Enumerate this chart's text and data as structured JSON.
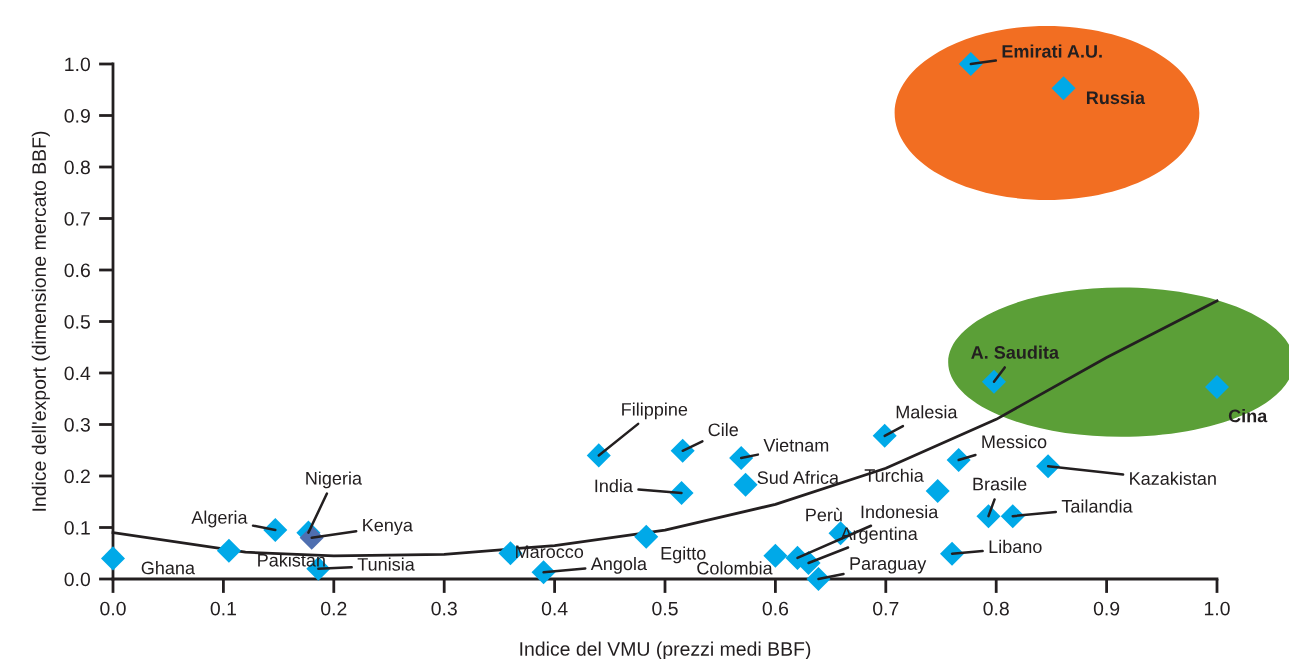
{
  "chart_data": {
    "type": "scatter",
    "xlabel": "Indice del VMU (prezzi medi BBF)",
    "ylabel": "Indice dell'export (dimensione mercato BBF)",
    "xlim": [
      0,
      1.0
    ],
    "ylim": [
      0,
      1.0
    ],
    "xticks": [
      {
        "value": 0,
        "label": "0.0"
      },
      0.1,
      0.2,
      0.3,
      0.4,
      0.5,
      0.6,
      0.7,
      0.8,
      0.9,
      {
        "value": 1.0,
        "label": "1.0"
      }
    ],
    "yticks": [
      {
        "value": 0,
        "label": "0.0"
      },
      0.1,
      0.2,
      0.3,
      0.4,
      0.5,
      0.6,
      0.7,
      0.8,
      0.9,
      {
        "value": 1.0,
        "label": "1.0"
      }
    ],
    "grid": false,
    "legend": false,
    "marker": "diamond",
    "series": [
      {
        "colors": [
          "#00a9e8",
          "#00a9e8",
          "#00a9e8",
          "#00a9e8",
          "#4f6fb0",
          "#00a9e8",
          "#00a9e8",
          "#00a9e8",
          "#00a9e8",
          "#00a9e8",
          "#00a9e8",
          "#00a9e8",
          "#00a9e8",
          "#00a9e8",
          "#00a9e8",
          "#00a9e8",
          "#00a9e8",
          "#00a9e8",
          "#00a9e8",
          "#00a9e8",
          "#00a9e8",
          "#00a9e8",
          "#00a9e8",
          "#00a9e8",
          "#00a9e8",
          "#00a9e8",
          "#00a9e8",
          "#00a9e8",
          "#00a9e8",
          "#00a9e8"
        ],
        "x": [
          0.0,
          0.105,
          0.147,
          0.177,
          0.18,
          0.186,
          0.36,
          0.39,
          0.44,
          0.483,
          0.516,
          0.515,
          0.569,
          0.573,
          0.699,
          0.6,
          0.62,
          0.63,
          0.659,
          0.639,
          0.747,
          0.766,
          0.793,
          0.815,
          0.847,
          0.76,
          0.777,
          0.861,
          0.798,
          1.0
        ],
        "values": [
          0.04,
          0.055,
          0.095,
          0.09,
          0.08,
          0.02,
          0.05,
          0.013,
          0.24,
          0.082,
          0.249,
          0.167,
          0.235,
          0.183,
          0.278,
          0.045,
          0.041,
          0.031,
          0.089,
          0.0,
          0.171,
          0.231,
          0.122,
          0.122,
          0.219,
          0.049,
          1.0,
          0.953,
          0.383,
          0.373
        ]
      },
      {
        "type": "line",
        "color": "#231f20",
        "marker": "none",
        "line_style": "solid",
        "x": [
          0,
          0.12,
          0.2,
          0.3,
          0.4,
          0.5,
          0.6,
          0.7,
          0.8,
          0.9,
          1.0
        ],
        "values": [
          0.09,
          0.052,
          0.045,
          0.048,
          0.065,
          0.095,
          0.145,
          0.215,
          0.31,
          0.43,
          0.54
        ]
      }
    ],
    "annotations": [
      {
        "text": "Ghana",
        "x": 0.0,
        "y": 0.04
      },
      {
        "text": "Pakistan",
        "x": 0.105,
        "y": 0.055
      },
      {
        "text": "Algeria",
        "x": 0.147,
        "y": 0.095
      },
      {
        "text": "Nigeria",
        "x": 0.177,
        "y": 0.09
      },
      {
        "text": "Kenya",
        "x": 0.18,
        "y": 0.08
      },
      {
        "text": "Tunisia",
        "x": 0.186,
        "y": 0.02
      },
      {
        "text": "Marocco",
        "x": 0.36,
        "y": 0.05
      },
      {
        "text": "Angola",
        "x": 0.39,
        "y": 0.013
      },
      {
        "text": "Filippine",
        "x": 0.44,
        "y": 0.24
      },
      {
        "text": "Egitto",
        "x": 0.483,
        "y": 0.082
      },
      {
        "text": "Cile",
        "x": 0.516,
        "y": 0.249
      },
      {
        "text": "India",
        "x": 0.515,
        "y": 0.167
      },
      {
        "text": "Vietnam",
        "x": 0.569,
        "y": 0.235
      },
      {
        "text": "Sud Africa",
        "x": 0.573,
        "y": 0.183
      },
      {
        "text": "Malesia",
        "x": 0.699,
        "y": 0.278
      },
      {
        "text": "Colombia",
        "x": 0.6,
        "y": 0.045
      },
      {
        "text": "Indonesia",
        "x": 0.62,
        "y": 0.041
      },
      {
        "text": "Argentina",
        "x": 0.63,
        "y": 0.031
      },
      {
        "text": "Perù",
        "x": 0.659,
        "y": 0.089
      },
      {
        "text": "Paraguay",
        "x": 0.639,
        "y": 0.0
      },
      {
        "text": "Turchia",
        "x": 0.747,
        "y": 0.171
      },
      {
        "text": "Messico",
        "x": 0.766,
        "y": 0.231
      },
      {
        "text": "Brasile",
        "x": 0.793,
        "y": 0.122
      },
      {
        "text": "Tailandia",
        "x": 0.815,
        "y": 0.122
      },
      {
        "text": "Kazakistan",
        "x": 0.847,
        "y": 0.219
      },
      {
        "text": "Libano",
        "x": 0.76,
        "y": 0.049
      },
      {
        "text": "Emirati A.U.",
        "x": 0.777,
        "y": 1.0
      },
      {
        "text": "Russia",
        "x": 0.861,
        "y": 0.953
      },
      {
        "text": "A. Saudita",
        "x": 0.798,
        "y": 0.383
      },
      {
        "text": "Cina",
        "x": 1.0,
        "y": 0.373
      }
    ]
  }
}
